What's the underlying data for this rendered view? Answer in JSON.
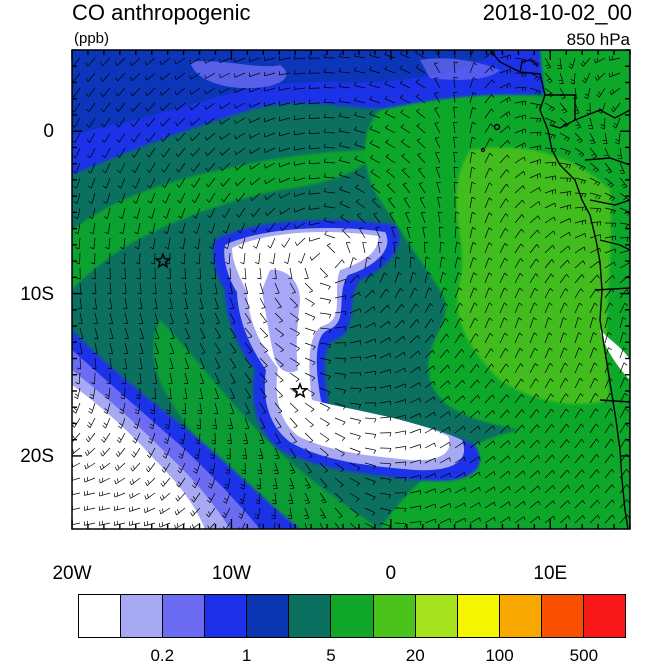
{
  "header": {
    "title": "CO anthropogenic",
    "units": "(ppb)",
    "datetime": "2018-10-02_00",
    "level": "850 hPa"
  },
  "map": {
    "lon_range": [
      -20,
      15
    ],
    "lat_range": [
      -24.5,
      5
    ],
    "lat_ticks": [
      {
        "value": 0,
        "label": "0"
      },
      {
        "value": -10,
        "label": "10S"
      },
      {
        "value": -20,
        "label": "20S"
      }
    ],
    "lon_ticks": [
      {
        "value": -20,
        "label": "20W"
      },
      {
        "value": -10,
        "label": "10W"
      },
      {
        "value": 0,
        "label": "0"
      },
      {
        "value": 10,
        "label": "10E"
      }
    ],
    "star_markers": [
      {
        "lon": -14.3,
        "lat": -8.0
      },
      {
        "lon": -5.7,
        "lat": -16.0
      }
    ]
  },
  "colorbar": {
    "colors": [
      "#ffffff",
      "#a7aaf2",
      "#6c6cf2",
      "#1e30e8",
      "#0a36b4",
      "#0b7060",
      "#11a82a",
      "#4cc21c",
      "#a6e21e",
      "#f6f600",
      "#f9a800",
      "#f95000",
      "#f81818"
    ],
    "labels": [
      "0.2",
      "1",
      "5",
      "20",
      "100",
      "500"
    ],
    "label_after_box": [
      2,
      4,
      6,
      8,
      10,
      12
    ]
  }
}
